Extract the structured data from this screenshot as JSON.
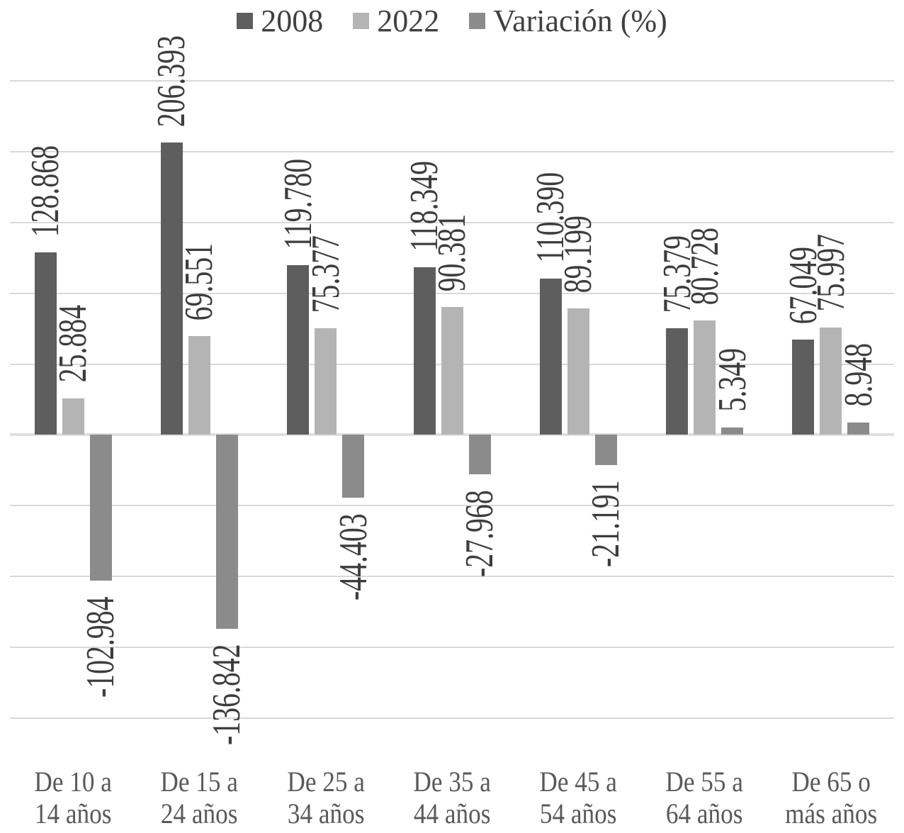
{
  "chart_data": {
    "type": "bar",
    "title": "",
    "xlabel": "",
    "ylabel": "",
    "legend_position": "top",
    "grid": "on",
    "y_axis_tick_labels_visible": false,
    "ylim": [
      -200000,
      250000
    ],
    "grid_step": 50000,
    "categories": [
      {
        "line1": "De 10 a",
        "line2": "14 años"
      },
      {
        "line1": "De 15 a",
        "line2": "24 años"
      },
      {
        "line1": "De 25 a",
        "line2": "34 años"
      },
      {
        "line1": "De 35 a",
        "line2": "44 años"
      },
      {
        "line1": "De 45 a",
        "line2": "54 años"
      },
      {
        "line1": "De 55 a",
        "line2": "64 años"
      },
      {
        "line1": "De 65 o",
        "line2": "más años"
      }
    ],
    "series": [
      {
        "name": "2008",
        "color": "#5e5e5e",
        "values": [
          128868,
          206393,
          119780,
          118349,
          110390,
          75379,
          67049
        ],
        "labels": [
          "128.868",
          "206.393",
          "119.780",
          "118.349",
          "110.390",
          "75.379",
          "67.049"
        ]
      },
      {
        "name": "2022",
        "color": "#b4b4b4",
        "values": [
          25884,
          69551,
          75377,
          90381,
          89199,
          80728,
          75997
        ],
        "labels": [
          "25.884",
          "69.551",
          "75.377",
          "90.381",
          "89.199",
          "80.728",
          "75.997"
        ]
      },
      {
        "name": "Variación (%)",
        "color": "#8b8b8b",
        "values": [
          -102984,
          -136842,
          -44403,
          -27968,
          -21191,
          5349,
          8948
        ],
        "labels": [
          "-102.984",
          "-136.842",
          "-44.403",
          "-27.968",
          "-21.191",
          "5.349",
          "8.948"
        ]
      }
    ]
  },
  "colors": {
    "background": "#ffffff",
    "gridline": "#d9d9d9",
    "zero_line": "#e0e0e0",
    "value_label_text": "#3d3d3d",
    "axis_label_text": "#595959",
    "legend_text": "#404040"
  }
}
